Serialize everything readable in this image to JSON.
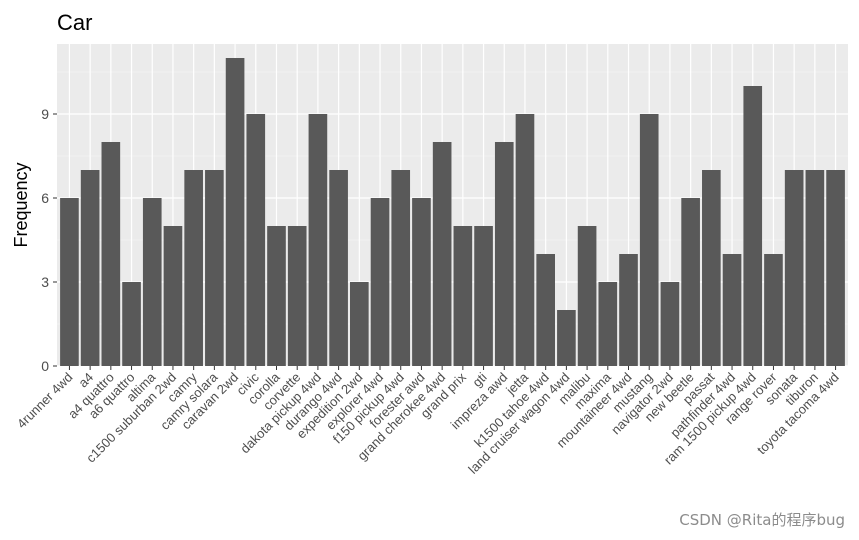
{
  "chart_data": {
    "type": "bar",
    "title": "Car",
    "xlabel": "",
    "ylabel": "Frequency",
    "ylim": [
      0,
      11.5
    ],
    "yticks": [
      0,
      3,
      6,
      9
    ],
    "grid": true,
    "legend": "none",
    "bar_color": "#595959",
    "panel_color": "#ebebeb",
    "categories": [
      "4runner 4wd",
      "a4",
      "a4 quattro",
      "a6 quattro",
      "altima",
      "c1500 suburban 2wd",
      "camry",
      "camry solara",
      "caravan 2wd",
      "civic",
      "corolla",
      "corvette",
      "dakota pickup 4wd",
      "durango 4wd",
      "expedition 2wd",
      "explorer 4wd",
      "f150 pickup 4wd",
      "forester awd",
      "grand cherokee 4wd",
      "grand prix",
      "gti",
      "impreza awd",
      "jetta",
      "k1500 tahoe 4wd",
      "land cruiser wagon 4wd",
      "malibu",
      "maxima",
      "mountaineer 4wd",
      "mustang",
      "navigator 2wd",
      "new beetle",
      "passat",
      "pathfinder 4wd",
      "ram 1500 pickup 4wd",
      "range rover",
      "sonata",
      "tiburon",
      "toyota tacoma 4wd"
    ],
    "values": [
      6,
      7,
      8,
      3,
      6,
      5,
      7,
      7,
      11,
      9,
      5,
      5,
      9,
      7,
      3,
      6,
      7,
      6,
      8,
      5,
      5,
      8,
      9,
      4,
      2,
      5,
      3,
      4,
      9,
      3,
      6,
      7,
      4,
      10,
      4,
      7,
      7,
      7
    ]
  },
  "watermark": "CSDN @Rita的程序bug"
}
